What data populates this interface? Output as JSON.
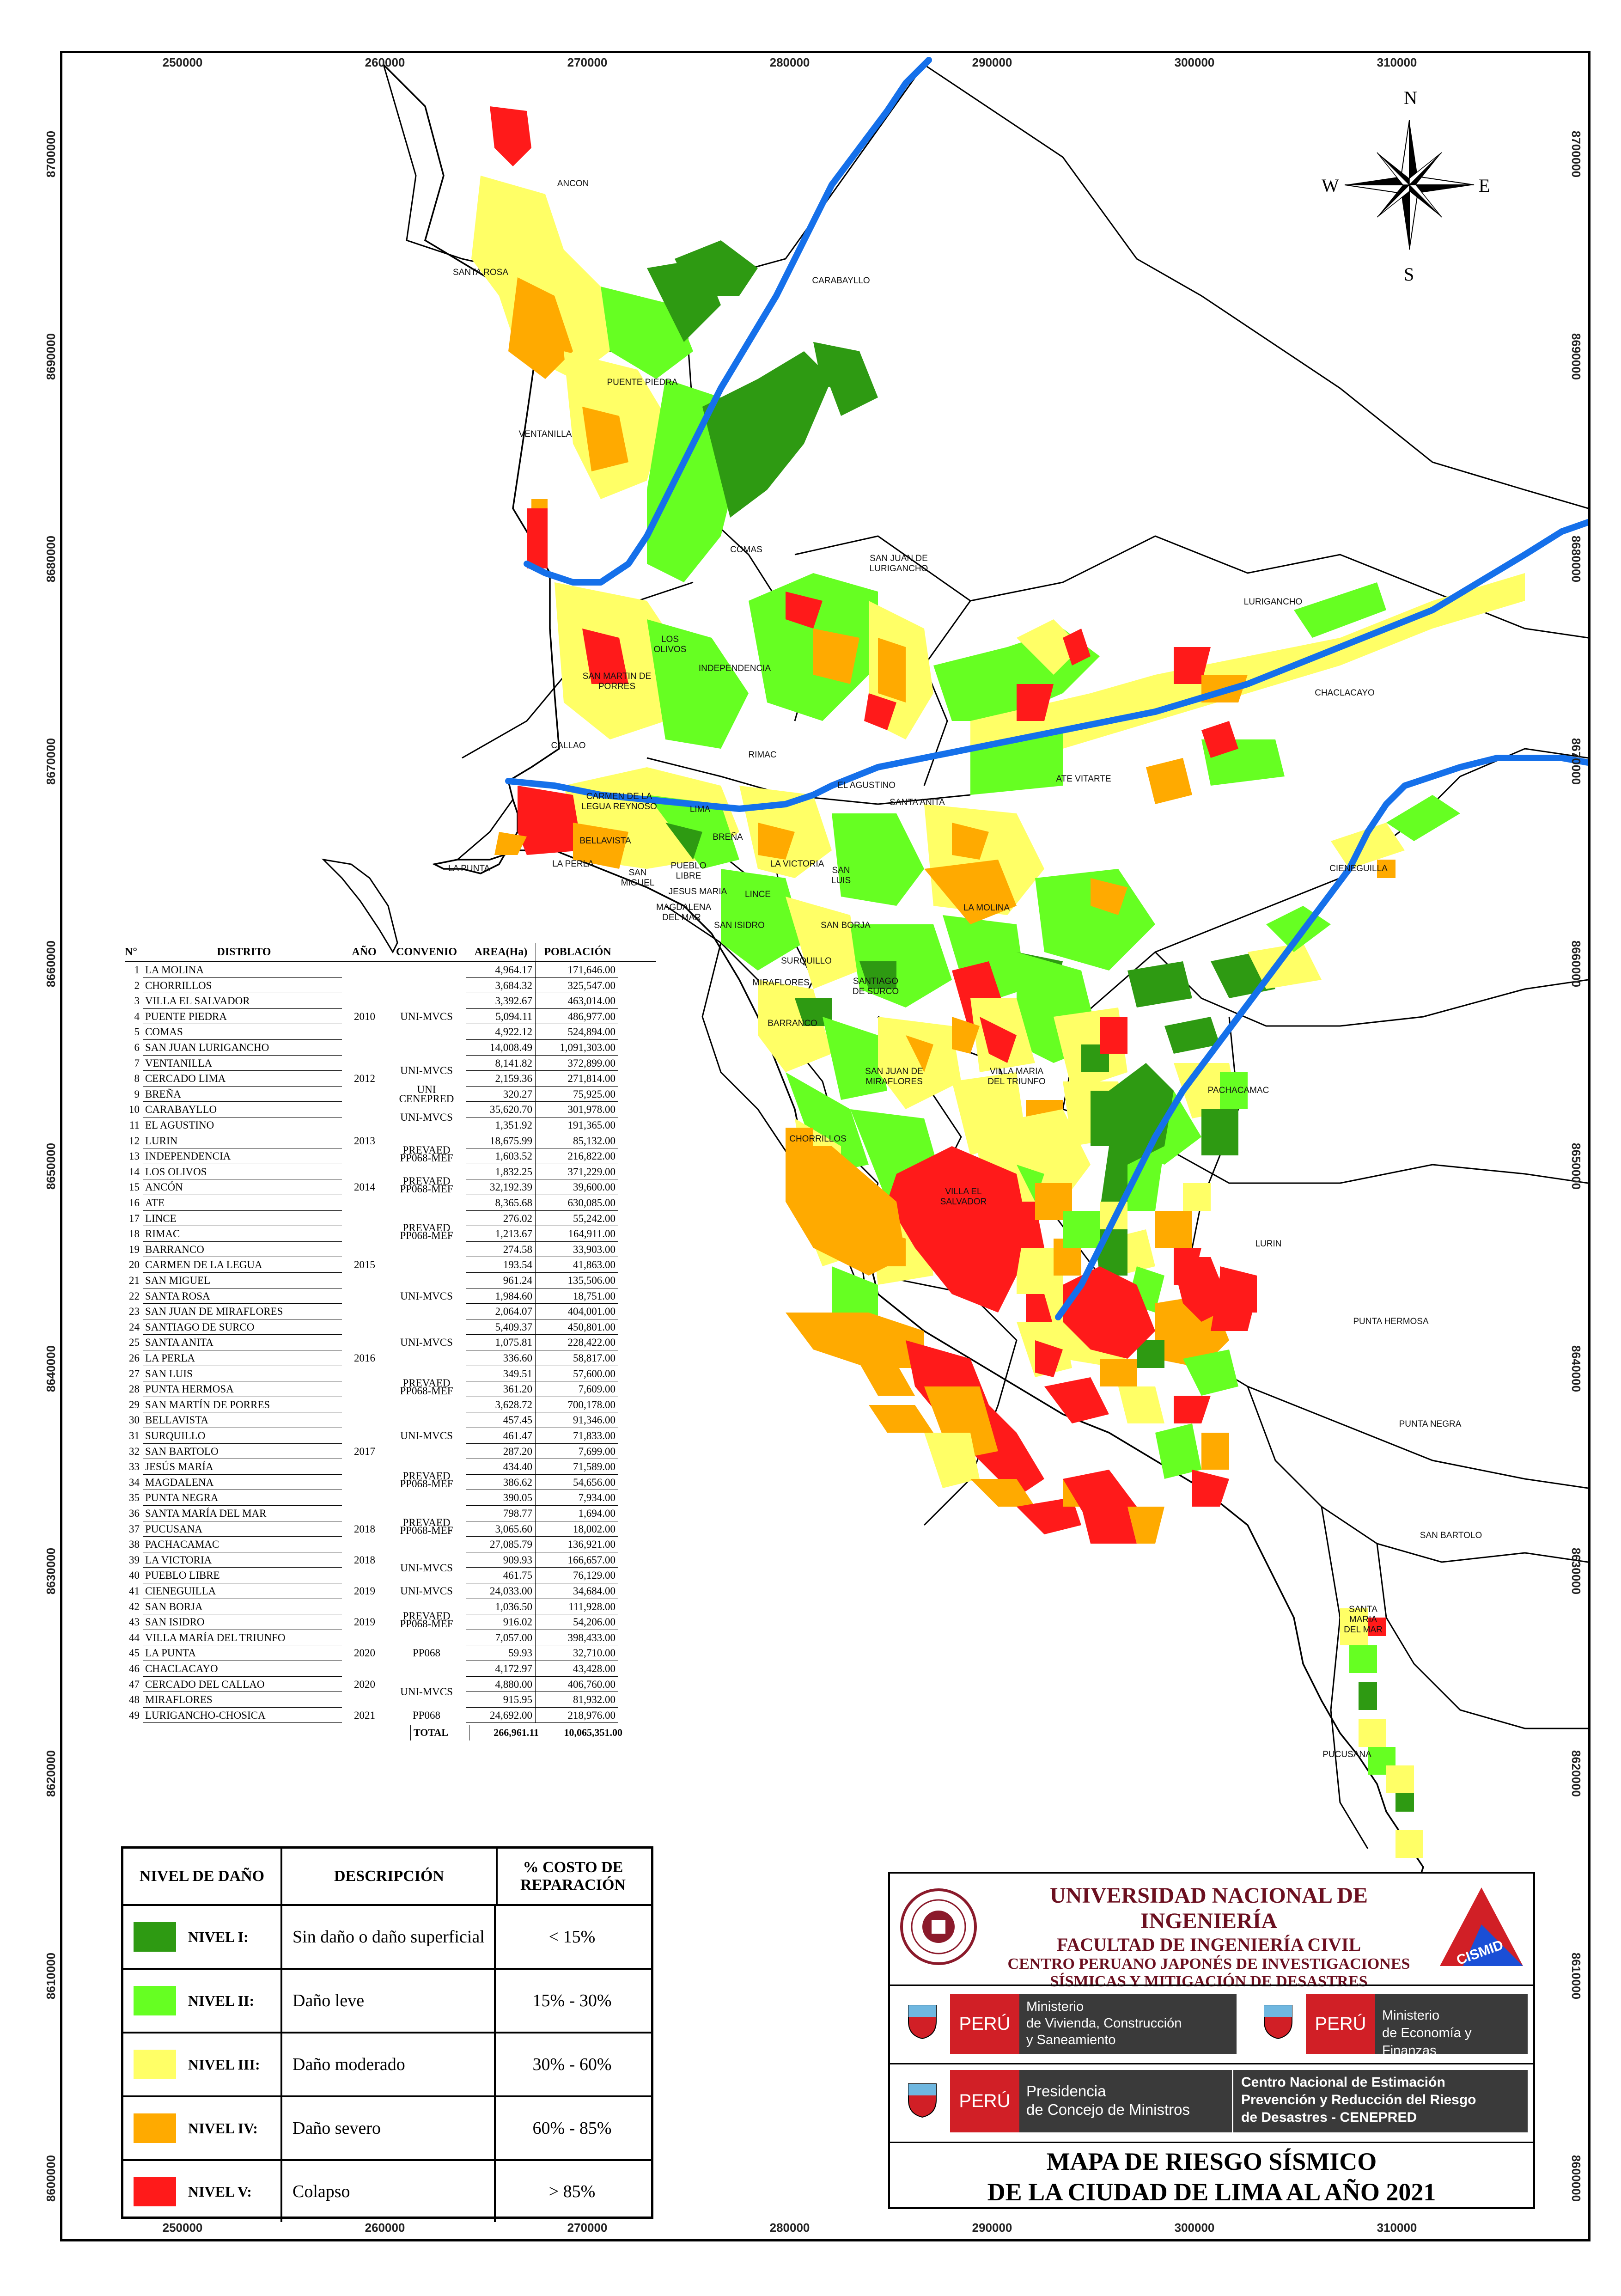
{
  "colors": {
    "nivel_1": "#2e9a12",
    "nivel_2": "#66ff22",
    "nivel_3": "#ffff66",
    "nivel_4": "#ffaa00",
    "nivel_5": "#ff1a1a",
    "river": "#1570ea",
    "ocean": "#ffffff",
    "land": "#ffffff",
    "border": "#000000"
  },
  "grid": {
    "x_labels": [
      "250000",
      "260000",
      "270000",
      "280000",
      "290000",
      "300000",
      "310000"
    ],
    "y_labels": [
      "8700000",
      "8690000",
      "8680000",
      "8670000",
      "8660000",
      "8650000",
      "8640000",
      "8630000",
      "8620000",
      "8610000",
      "8600000"
    ]
  },
  "compass": {
    "n": "N",
    "s": "S",
    "e": "E",
    "w": "W"
  },
  "districts_on_map": [
    "ANCON",
    "SANTA ROSA",
    "CARABAYLLO",
    "PUENTE PIEDRA",
    "VENTANILLA",
    "COMAS",
    "SAN JUAN DE LURIGANCHO",
    "LOS OLIVOS",
    "INDEPENDENCIA",
    "SAN MARTIN DE PORRES",
    "CALLAO",
    "RIMAC",
    "EL AGUSTINO",
    "ATE VITARTE",
    "SANTA ANITA",
    "LURIGANCHO",
    "CHACLACAYO",
    "CARMEN DE LA LEGUA REYNOSO",
    "LIMA",
    "BREÑA",
    "BELLAVISTA",
    "LA PUNTA",
    "LA PERLA",
    "SAN MIGUEL",
    "PUEBLO LIBRE",
    "LA VICTORIA",
    "SAN LUIS",
    "CIENEGUILLA",
    "JESUS MARIA",
    "LINCE",
    "MAGDALENA DEL MAR",
    "SAN ISIDRO",
    "SAN BORJA",
    "LA MOLINA",
    "SURQUILLO",
    "MIRAFLORES",
    "SANTIAGO DE SURCO",
    "BARRANCO",
    "SAN JUAN DE MIRAFLORES",
    "VILLA MARIA DEL TRIUNFO",
    "PACHACAMAC",
    "CHORRILLOS",
    "VILLA EL SALVADOR",
    "LURIN",
    "PUNTA HERMOSA",
    "PUNTA NEGRA",
    "SAN BARTOLO",
    "SANTA MARIA DEL MAR",
    "PUCUSANA"
  ],
  "table": {
    "headers": {
      "num": "N°",
      "district": "DISTRITO",
      "year": "AÑO",
      "agreement": "CONVENIO",
      "area": "AREA(Ha)",
      "population": "POBLACIÓN"
    },
    "rows": [
      {
        "n": "1",
        "d": "LA MOLINA",
        "a": "4,964.17",
        "p": "171,646.00"
      },
      {
        "n": "2",
        "d": "CHORRILLOS",
        "a": "3,684.32",
        "p": "325,547.00"
      },
      {
        "n": "3",
        "d": "VILLA EL SALVADOR",
        "a": "3,392.67",
        "p": "463,014.00"
      },
      {
        "n": "4",
        "d": "PUENTE PIEDRA",
        "a": "5,094.11",
        "p": "486,977.00"
      },
      {
        "n": "5",
        "d": "COMAS",
        "a": "4,922.12",
        "p": "524,894.00"
      },
      {
        "n": "6",
        "d": "SAN JUAN LURIGANCHO",
        "a": "14,008.49",
        "p": "1,091,303.00"
      },
      {
        "n": "7",
        "d": "VENTANILLA",
        "a": "8,141.82",
        "p": "372,899.00"
      },
      {
        "n": "8",
        "d": "CERCADO LIMA",
        "a": "2,159.36",
        "p": "271,814.00"
      },
      {
        "n": "9",
        "d": "BREÑA",
        "a": "320.27",
        "p": "75,925.00"
      },
      {
        "n": "10",
        "d": "CARABAYLLO",
        "a": "35,620.70",
        "p": "301,978.00"
      },
      {
        "n": "11",
        "d": "EL AGUSTINO",
        "a": "1,351.92",
        "p": "191,365.00"
      },
      {
        "n": "12",
        "d": "LURIN",
        "a": "18,675.99",
        "p": "85,132.00"
      },
      {
        "n": "13",
        "d": "INDEPENDENCIA",
        "a": "1,603.52",
        "p": "216,822.00"
      },
      {
        "n": "14",
        "d": "LOS OLIVOS",
        "a": "1,832.25",
        "p": "371,229.00"
      },
      {
        "n": "15",
        "d": "ANCÓN",
        "a": "32,192.39",
        "p": "39,600.00"
      },
      {
        "n": "16",
        "d": "ATE",
        "a": "8,365.68",
        "p": "630,085.00"
      },
      {
        "n": "17",
        "d": "LINCE",
        "a": "276.02",
        "p": "55,242.00"
      },
      {
        "n": "18",
        "d": "RIMAC",
        "a": "1,213.67",
        "p": "164,911.00"
      },
      {
        "n": "19",
        "d": "BARRANCO",
        "a": "274.58",
        "p": "33,903.00"
      },
      {
        "n": "20",
        "d": "CARMEN DE LA LEGUA",
        "a": "193.54",
        "p": "41,863.00"
      },
      {
        "n": "21",
        "d": "SAN MIGUEL",
        "a": "961.24",
        "p": "135,506.00"
      },
      {
        "n": "22",
        "d": "SANTA ROSA",
        "a": "1,984.60",
        "p": "18,751.00"
      },
      {
        "n": "23",
        "d": "SAN JUAN DE MIRAFLORES",
        "a": "2,064.07",
        "p": "404,001.00"
      },
      {
        "n": "24",
        "d": "SANTIAGO DE SURCO",
        "a": "5,409.37",
        "p": "450,801.00"
      },
      {
        "n": "25",
        "d": "SANTA ANITA",
        "a": "1,075.81",
        "p": "228,422.00"
      },
      {
        "n": "26",
        "d": "LA PERLA",
        "a": "336.60",
        "p": "58,817.00"
      },
      {
        "n": "27",
        "d": "SAN LUIS",
        "a": "349.51",
        "p": "57,600.00"
      },
      {
        "n": "28",
        "d": "PUNTA HERMOSA",
        "a": "361.20",
        "p": "7,609.00"
      },
      {
        "n": "29",
        "d": "SAN MARTÍN DE PORRES",
        "a": "3,628.72",
        "p": "700,178.00"
      },
      {
        "n": "30",
        "d": "BELLAVISTA",
        "a": "457.45",
        "p": "91,346.00"
      },
      {
        "n": "31",
        "d": "SURQUILLO",
        "a": "461.47",
        "p": "71,833.00"
      },
      {
        "n": "32",
        "d": "SAN BARTOLO",
        "a": "287.20",
        "p": "7,699.00"
      },
      {
        "n": "33",
        "d": "JESÚS MARÍA",
        "a": "434.40",
        "p": "71,589.00"
      },
      {
        "n": "34",
        "d": "MAGDALENA",
        "a": "386.62",
        "p": "54,656.00"
      },
      {
        "n": "35",
        "d": "PUNTA NEGRA",
        "a": "390.05",
        "p": "7,934.00"
      },
      {
        "n": "36",
        "d": "SANTA MARÍA DEL MAR",
        "a": "798.77",
        "p": "1,694.00"
      },
      {
        "n": "37",
        "d": "PUCUSANA",
        "a": "3,065.60",
        "p": "18,002.00"
      },
      {
        "n": "38",
        "d": "PACHACAMAC",
        "a": "27,085.79",
        "p": "136,921.00"
      },
      {
        "n": "39",
        "d": "LA VICTORIA",
        "a": "909.93",
        "p": "166,657.00"
      },
      {
        "n": "40",
        "d": "PUEBLO LIBRE",
        "a": "461.75",
        "p": "76,129.00"
      },
      {
        "n": "41",
        "d": "CIENEGUILLA",
        "a": "24,033.00",
        "p": "34,684.00"
      },
      {
        "n": "42",
        "d": "SAN BORJA",
        "a": "1,036.50",
        "p": "111,928.00"
      },
      {
        "n": "43",
        "d": "SAN ISIDRO",
        "a": "916.02",
        "p": "54,206.00"
      },
      {
        "n": "44",
        "d": "VILLA MARÍA DEL TRIUNFO",
        "a": "7,057.00",
        "p": "398,433.00"
      },
      {
        "n": "45",
        "d": "LA PUNTA",
        "a": "59.93",
        "p": "32,710.00"
      },
      {
        "n": "46",
        "d": "CHACLACAYO",
        "a": "4,172.97",
        "p": "43,428.00"
      },
      {
        "n": "47",
        "d": "CERCADO DEL CALLAO",
        "a": "4,880.00",
        "p": "406,760.00"
      },
      {
        "n": "48",
        "d": "MIRAFLORES",
        "a": "915.95",
        "p": "81,932.00"
      },
      {
        "n": "49",
        "d": "LURIGANCHO-CHOSICA",
        "a": "24,692.00",
        "p": "218,976.00"
      }
    ],
    "groups": [
      {
        "year": "2010",
        "conv": "UNI-MVCS",
        "rows": "1-6"
      },
      {
        "year": "2012",
        "conv": "UNI-MVCS",
        "rows": "7-8"
      },
      {
        "conv": "UNI CENEPRED",
        "rows": "9"
      },
      {
        "year": "2013",
        "conv": "UNI-MVCS",
        "rows": "10-11"
      },
      {
        "year": "2014",
        "conv": "PREVAED PP068-MEF",
        "rows": "12-16"
      },
      {
        "year": "2015",
        "conv": "PREVAED PP068-MEF / UNI-MVCS",
        "rows": "17-24"
      },
      {
        "year": "2016",
        "conv": "UNI-MVCS / PREVAED PP068-MEF",
        "rows": "25-29"
      },
      {
        "year": "2017",
        "conv": "UNI-MVCS / PREVAED PP068-MEF",
        "rows": "30-36"
      },
      {
        "year": "2018",
        "conv": "PREVAED PP068-MEF / UNI-MVCS",
        "rows": "37-40"
      },
      {
        "year": "2019",
        "conv": "UNI-MVCS / PREVAED PP068-MEF",
        "rows": "41-44"
      },
      {
        "year": "2020",
        "conv": "PP068 / UNI-MVCS",
        "rows": "45-48"
      },
      {
        "year": "2021",
        "conv": "PP068",
        "rows": "49"
      }
    ],
    "year_labels": [
      {
        "label": "2010",
        "row": 4
      },
      {
        "label": "2012",
        "row": 8
      },
      {
        "label": "2013",
        "row": 12
      },
      {
        "label": "2014",
        "row": 15
      },
      {
        "label": "2015",
        "row": 20
      },
      {
        "label": "2016",
        "row": 26
      },
      {
        "label": "2017",
        "row": 32
      },
      {
        "label": "2018",
        "row": 37
      },
      {
        "label": "2018",
        "row": 39
      },
      {
        "label": "2019",
        "row": 41
      },
      {
        "label": "2019",
        "row": 43
      },
      {
        "label": "2020",
        "row": 45
      },
      {
        "label": "2020",
        "row": 47
      },
      {
        "label": "2021",
        "row": 49
      }
    ],
    "conv_labels": [
      {
        "label": "UNI-MVCS",
        "row": 4
      },
      {
        "label": "UNI-MVCS",
        "row": 7.5
      },
      {
        "label": "UNI",
        "row": 8.7
      },
      {
        "label": "CENEPRED",
        "row": 9.3
      },
      {
        "label": "UNI-MVCS",
        "row": 10.5
      },
      {
        "label": "PREVAED",
        "row": 12.6
      },
      {
        "label": "PP068-MEF",
        "row": 13.1
      },
      {
        "label": "PREVAED",
        "row": 14.6
      },
      {
        "label": "PP068-MEF",
        "row": 15.1
      },
      {
        "label": "PREVAED",
        "row": 17.6
      },
      {
        "label": "PP068-MEF",
        "row": 18.1
      },
      {
        "label": "UNI-MVCS",
        "row": 22
      },
      {
        "label": "UNI-MVCS",
        "row": 25
      },
      {
        "label": "PREVAED",
        "row": 27.6
      },
      {
        "label": "PP068-MEF",
        "row": 28.1
      },
      {
        "label": "UNI-MVCS",
        "row": 31
      },
      {
        "label": "PREVAED",
        "row": 33.6
      },
      {
        "label": "PP068-MEF",
        "row": 34.1
      },
      {
        "label": "PREVAED",
        "row": 36.6
      },
      {
        "label": "PP068-MEF",
        "row": 37.1
      },
      {
        "label": "UNI-MVCS",
        "row": 39.5
      },
      {
        "label": "UNI-MVCS",
        "row": 41
      },
      {
        "label": "PREVAED",
        "row": 42.6
      },
      {
        "label": "PP068-MEF",
        "row": 43.1
      },
      {
        "label": "PP068",
        "row": 45
      },
      {
        "label": "UNI-MVCS",
        "row": 47.5
      },
      {
        "label": "PP068",
        "row": 49
      }
    ],
    "total": {
      "label": "TOTAL",
      "area": "266,961.11",
      "population": "10,065,351.00"
    }
  },
  "legend": {
    "headers": {
      "level": "NIVEL DE DAÑO",
      "desc": "DESCRIPCIÓN",
      "cost": "% COSTO DE REPARACIÓN"
    },
    "rows": [
      {
        "level": "NIVEL I:",
        "desc": "Sin daño o daño superficial",
        "cost": "< 15%"
      },
      {
        "level": "NIVEL II:",
        "desc": "Daño leve",
        "cost": "15% - 30%"
      },
      {
        "level": "NIVEL III:",
        "desc": "Daño moderado",
        "cost": "30% - 60%"
      },
      {
        "level": "NIVEL IV:",
        "desc": "Daño severo",
        "cost": "60% - 85%"
      },
      {
        "level": "NIVEL V:",
        "desc": "Colapso",
        "cost": "> 85%"
      }
    ]
  },
  "institution": {
    "university": "UNIVERSIDAD NACIONAL DE INGENIERÍA",
    "faculty": "FACULTAD DE INGENIERÍA CIVIL",
    "center_1": "CENTRO PERUANO JAPONÉS DE INVESTIGACIONES",
    "center_2": "SÍSMICAS Y MITIGACIÓN DE DESASTRES",
    "cismid": "CISMID",
    "peru": "PERÚ",
    "ministry_1_a": "Ministerio",
    "ministry_1_b": "de Vivienda, Construcción",
    "ministry_1_c": "y Saneamiento",
    "ministry_2_a": "Ministerio",
    "ministry_2_b": "de Economía y Finanzas",
    "pcm_a": "Presidencia",
    "pcm_b": "de Concejo de Ministros",
    "cenepred_a": "Centro Nacional de Estimación",
    "cenepred_b": "Prevención y Reducción del Riesgo",
    "cenepred_c": "de Desastres - CENEPRED"
  },
  "title": {
    "line1": "MAPA DE RIESGO SÍSMICO",
    "line2": "DE LA CIUDAD DE LIMA AL AÑO 2021"
  }
}
